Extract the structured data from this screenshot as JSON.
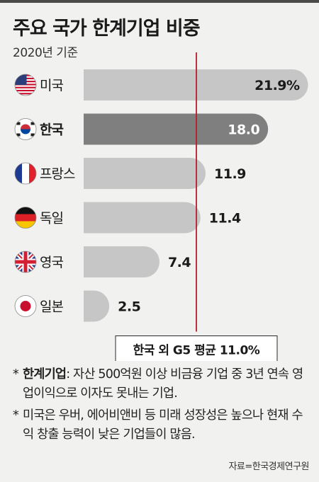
{
  "title": "주요 국가 한계기업 비중",
  "subtitle": "2020년 기준",
  "chart_data": {
    "type": "bar",
    "orientation": "horizontal",
    "categories": [
      "미국",
      "한국",
      "프랑스",
      "독일",
      "영국",
      "일본"
    ],
    "values": [
      21.9,
      18.0,
      11.9,
      11.4,
      7.4,
      2.5
    ],
    "value_labels": [
      "21.9%",
      "18.0",
      "11.9",
      "11.4",
      "7.4",
      "2.5"
    ],
    "highlight": "한국",
    "xlim": [
      0,
      22
    ],
    "reference_line": {
      "value": 11.0,
      "label": "한국 외 G5 평균 11.0%"
    },
    "colors": {
      "bar": "#c6c6c6",
      "highlight": "#7f7f7f",
      "reference": "#b3202a"
    },
    "flags": [
      "us-flag-icon",
      "kr-flag-icon",
      "fr-flag-icon",
      "de-flag-icon",
      "gb-flag-icon",
      "jp-flag-icon"
    ]
  },
  "notes": [
    {
      "mark": "*",
      "term": "한계기업",
      "text": ": 자산 500억원 이상 비금융 기업 중 3년 연속 영업이익으로 이자도 못내는 기업."
    },
    {
      "mark": "*",
      "term": "",
      "text": "미국은 우버, 에어비앤비 등 미래 성장성은 높으나 현재 수익 창출 능력이 낮은 기업들이 많음."
    }
  ],
  "source": "자료=한국경제연구원"
}
